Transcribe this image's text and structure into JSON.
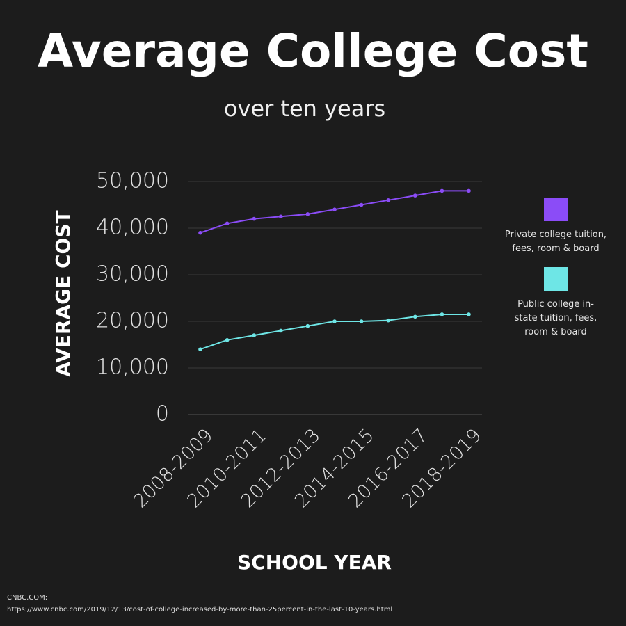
{
  "chart_data": {
    "type": "line",
    "title": "Average College Cost",
    "subtitle": "over ten years",
    "y_label": "AVERAGE COST",
    "x_label": "SCHOOL YEAR",
    "categories": [
      "2008-2009",
      null,
      "2010-2011",
      null,
      "2012-2013",
      null,
      "2014-2015",
      null,
      "2016-2017",
      null,
      "2018-2019"
    ],
    "series": [
      {
        "name": "Private college tuition, fees, room & board",
        "color": "#8b4cf7",
        "values": [
          39000,
          41000,
          42000,
          42500,
          43000,
          44000,
          45000,
          46000,
          47000,
          48000,
          48000
        ]
      },
      {
        "name": "Public college in-state tuition, fees, room & board",
        "color": "#6ee6e6",
        "values": [
          14000,
          16000,
          17000,
          18000,
          19000,
          20000,
          20000,
          20200,
          21000,
          21500,
          21500
        ]
      }
    ],
    "ylim": [
      0,
      50000
    ],
    "yticks": [
      0,
      {
        "value": 10000,
        "label": "10,000"
      },
      {
        "value": 20000,
        "label": "20,000"
      },
      {
        "value": 30000,
        "label": "30,000"
      },
      {
        "value": 40000,
        "label": "40,000"
      },
      {
        "value": 50000,
        "label": "50,000"
      }
    ],
    "grid": true,
    "legend": "right",
    "source": {
      "label": "CNBC.COM:",
      "url": "https://www.cnbc.com/2019/12/13/cost-of-college-increased-by-more-than-25percent-in-the-last-10-years.html"
    }
  }
}
